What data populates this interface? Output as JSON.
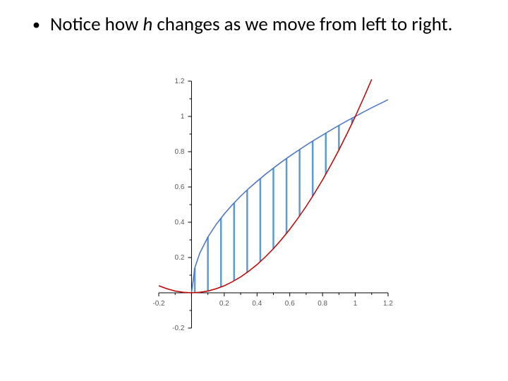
{
  "text": {
    "bullet_prefix": "Notice how ",
    "bullet_var": "h",
    "bullet_suffix": " changes as we move from left to right."
  },
  "chart": {
    "type": "line-area-between-curves",
    "background_color": "#ffffff",
    "xlim": [
      -0.2,
      1.2
    ],
    "ylim": [
      -0.2,
      1.2
    ],
    "xtick_step_major": 0.2,
    "ytick_step_major": 0.2,
    "x_ticks": [
      "-0.2",
      "0.2",
      "0.4",
      "0.6",
      "0.8",
      "1",
      "1.2"
    ],
    "y_ticks": [
      "-0.2",
      "0.2",
      "0.4",
      "0.6",
      "0.8",
      "1",
      "1.2"
    ],
    "tick_label_fontsize": 10,
    "tick_label_color": "#595959",
    "axis_color": "#000000",
    "axis_width": 1,
    "tick_length_major": 5,
    "tick_length_minor": 3,
    "series": [
      {
        "name": "sqrt_x",
        "color": "#4472c4",
        "width": 1.5,
        "x": [
          0.0,
          0.02,
          0.05,
          0.1,
          0.15,
          0.2,
          0.25,
          0.3,
          0.35,
          0.4,
          0.45,
          0.5,
          0.55,
          0.6,
          0.65,
          0.7,
          0.75,
          0.8,
          0.85,
          0.9,
          0.95,
          1.0,
          1.05,
          1.1,
          1.15,
          1.2
        ],
        "y": [
          0.0,
          0.141,
          0.224,
          0.316,
          0.387,
          0.447,
          0.5,
          0.548,
          0.592,
          0.632,
          0.671,
          0.707,
          0.742,
          0.775,
          0.806,
          0.837,
          0.866,
          0.894,
          0.922,
          0.949,
          0.975,
          1.0,
          1.025,
          1.049,
          1.072,
          1.095
        ]
      },
      {
        "name": "x_squared",
        "color": "#c00000",
        "width": 1.5,
        "x": [
          -0.2,
          -0.15,
          -0.1,
          -0.05,
          0.0,
          0.05,
          0.1,
          0.15,
          0.2,
          0.25,
          0.3,
          0.35,
          0.4,
          0.45,
          0.5,
          0.55,
          0.6,
          0.65,
          0.7,
          0.75,
          0.8,
          0.85,
          0.9,
          0.95,
          1.0,
          1.05,
          1.1
        ],
        "y": [
          0.04,
          0.023,
          0.01,
          0.003,
          0.0,
          0.003,
          0.01,
          0.023,
          0.04,
          0.063,
          0.09,
          0.123,
          0.16,
          0.203,
          0.25,
          0.303,
          0.36,
          0.423,
          0.49,
          0.563,
          0.64,
          0.723,
          0.81,
          0.903,
          1.0,
          1.103,
          1.21
        ]
      }
    ],
    "h_bars": {
      "color": "#5b9bd5",
      "width": 2.5,
      "x": [
        0.02,
        0.1,
        0.18,
        0.26,
        0.34,
        0.42,
        0.5,
        0.58,
        0.66,
        0.74,
        0.82,
        0.9,
        0.98
      ],
      "y_bottom": [
        0.0004,
        0.01,
        0.032,
        0.068,
        0.116,
        0.176,
        0.25,
        0.336,
        0.436,
        0.548,
        0.672,
        0.81,
        0.96
      ],
      "y_top": [
        0.141,
        0.316,
        0.424,
        0.51,
        0.583,
        0.648,
        0.707,
        0.762,
        0.812,
        0.86,
        0.906,
        0.949,
        0.99
      ]
    }
  }
}
